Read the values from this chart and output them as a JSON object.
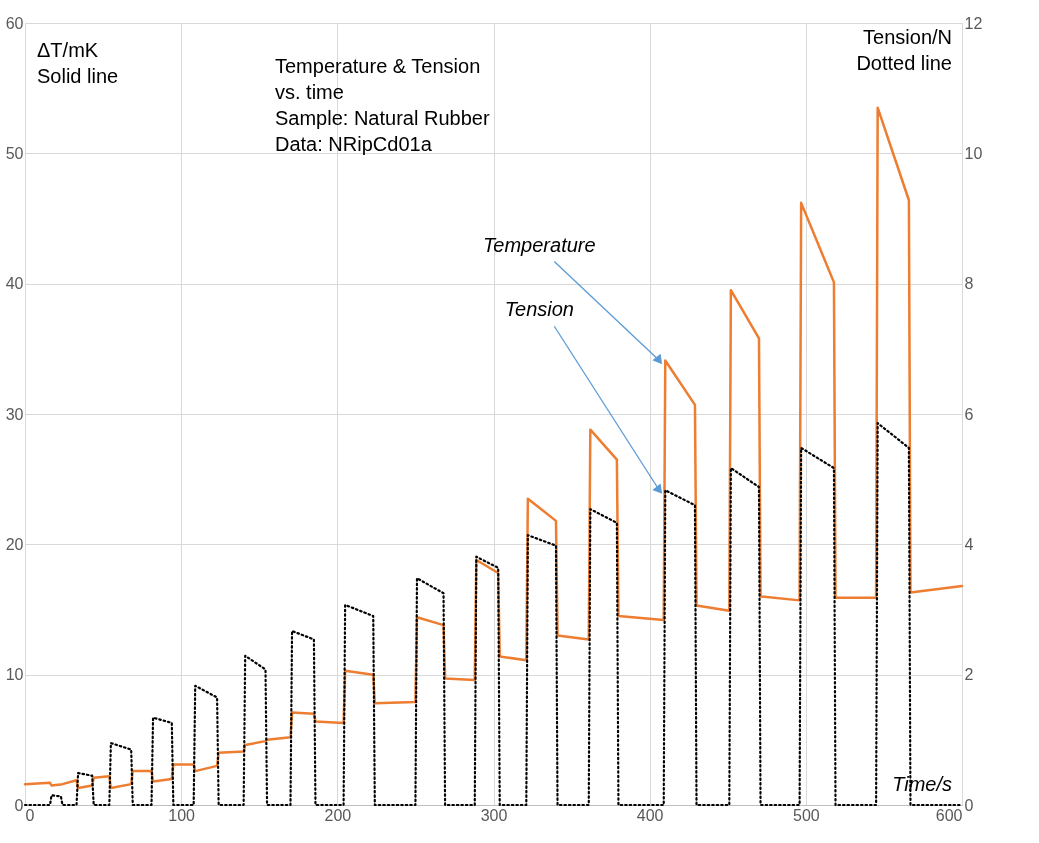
{
  "chart_data": {
    "type": "line",
    "title": "Temperature & Tension\nvs. time",
    "xlabel": "Time/s",
    "ylabel": "ΔT/mK\nSolid line",
    "y2label": "Tension/N\nDotted line",
    "annotations": [
      "Sample: Natural  Rubber",
      "Data: NRipCd01a",
      {
        "text": "Temperature",
        "x": 410,
        "y": 34.1
      },
      {
        "text": "Tension",
        "x": 410,
        "y": 24.15
      }
    ],
    "xlim": [
      0,
      600
    ],
    "xticks": [
      0,
      100,
      200,
      300,
      400,
      500,
      600
    ],
    "ylim": [
      0,
      60
    ],
    "yticks": [
      0,
      10,
      20,
      30,
      40,
      50,
      60
    ],
    "y2lim": [
      0,
      12
    ],
    "y2ticks": [
      0,
      2,
      4,
      6,
      8,
      10,
      12
    ],
    "grid": true,
    "marker": "none",
    "series": [
      {
        "color": "#ed7d31",
        "line_style": "solid",
        "x": [
          0,
          16,
          17,
          24,
          33,
          34,
          43,
          44,
          54,
          55,
          68,
          69,
          81,
          82,
          94,
          95,
          108,
          109,
          123,
          124,
          140,
          141,
          154,
          155,
          170,
          171,
          185,
          186,
          204,
          205,
          223,
          224,
          250,
          251,
          268,
          269,
          288,
          289,
          303,
          304,
          321,
          322,
          340,
          341,
          361,
          362,
          379,
          380,
          409,
          410,
          429,
          430,
          451,
          452,
          470,
          471,
          496,
          497,
          518,
          519,
          545,
          546,
          566,
          567,
          600
        ],
        "values": [
          1.6,
          1.7,
          1.5,
          1.6,
          1.9,
          1.3,
          1.5,
          2.1,
          2.2,
          1.3,
          1.6,
          2.6,
          2.6,
          1.8,
          2.0,
          3.1,
          3.1,
          2.6,
          3.0,
          4.0,
          4.1,
          4.6,
          4.9,
          5.0,
          5.2,
          7.1,
          7.0,
          6.4,
          6.3,
          10.3,
          10.0,
          7.8,
          7.9,
          14.4,
          13.8,
          9.7,
          9.6,
          18.8,
          17.8,
          11.4,
          11.1,
          23.5,
          21.8,
          13.0,
          12.7,
          28.8,
          26.5,
          14.5,
          14.2,
          34.1,
          30.7,
          15.3,
          14.9,
          39.5,
          35.8,
          16.0,
          15.7,
          46.2,
          40.1,
          15.9,
          15.9,
          53.5,
          46.4,
          16.3,
          16.8
        ]
      },
      {
        "color": "#000000",
        "line_style": "dotted",
        "axis": "y2",
        "x": [
          0,
          16,
          17,
          23,
          24,
          33,
          34,
          43,
          44,
          54,
          55,
          68,
          69,
          81,
          82,
          94,
          95,
          108,
          109,
          123,
          124,
          140,
          141,
          154,
          155,
          170,
          171,
          185,
          186,
          204,
          205,
          223,
          224,
          250,
          251,
          268,
          269,
          288,
          289,
          303,
          304,
          321,
          322,
          340,
          341,
          361,
          362,
          379,
          380,
          409,
          410,
          429,
          430,
          451,
          452,
          470,
          471,
          496,
          497,
          518,
          519,
          545,
          546,
          566,
          567,
          600
        ],
        "values": [
          0,
          0,
          0.15,
          0.13,
          0,
          0,
          0.49,
          0.45,
          0,
          0,
          0.95,
          0.85,
          0,
          0,
          1.34,
          1.26,
          0,
          0,
          1.83,
          1.65,
          0,
          0,
          2.29,
          2.08,
          0,
          0,
          2.67,
          2.54,
          0,
          0,
          3.07,
          2.9,
          0,
          0,
          3.48,
          3.25,
          0,
          0,
          3.81,
          3.64,
          0,
          0,
          4.14,
          3.98,
          0,
          0,
          4.54,
          4.33,
          0,
          0,
          4.83,
          4.6,
          0,
          0,
          5.17,
          4.88,
          0,
          0,
          5.48,
          5.17,
          0,
          0,
          5.86,
          5.48,
          0,
          0
        ]
      }
    ]
  }
}
